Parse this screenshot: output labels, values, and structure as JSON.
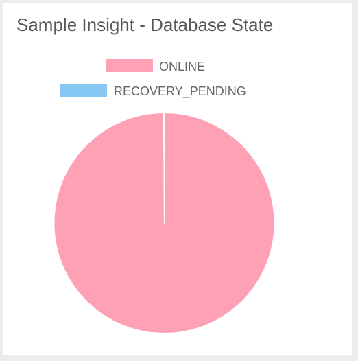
{
  "widget": {
    "title": "Sample Insight - Database State"
  },
  "chart_data": {
    "type": "pie",
    "title": "Sample Insight - Database State",
    "legend_position": "top",
    "series": [
      {
        "name": "",
        "values": [
          {
            "label": "ONLINE",
            "value": 99.9,
            "color": "#ffa1b5"
          },
          {
            "label": "RECOVERY_PENDING",
            "value": 0.1,
            "color": "#86c7f3"
          }
        ]
      }
    ],
    "slice_border_color": "#ffffff"
  }
}
